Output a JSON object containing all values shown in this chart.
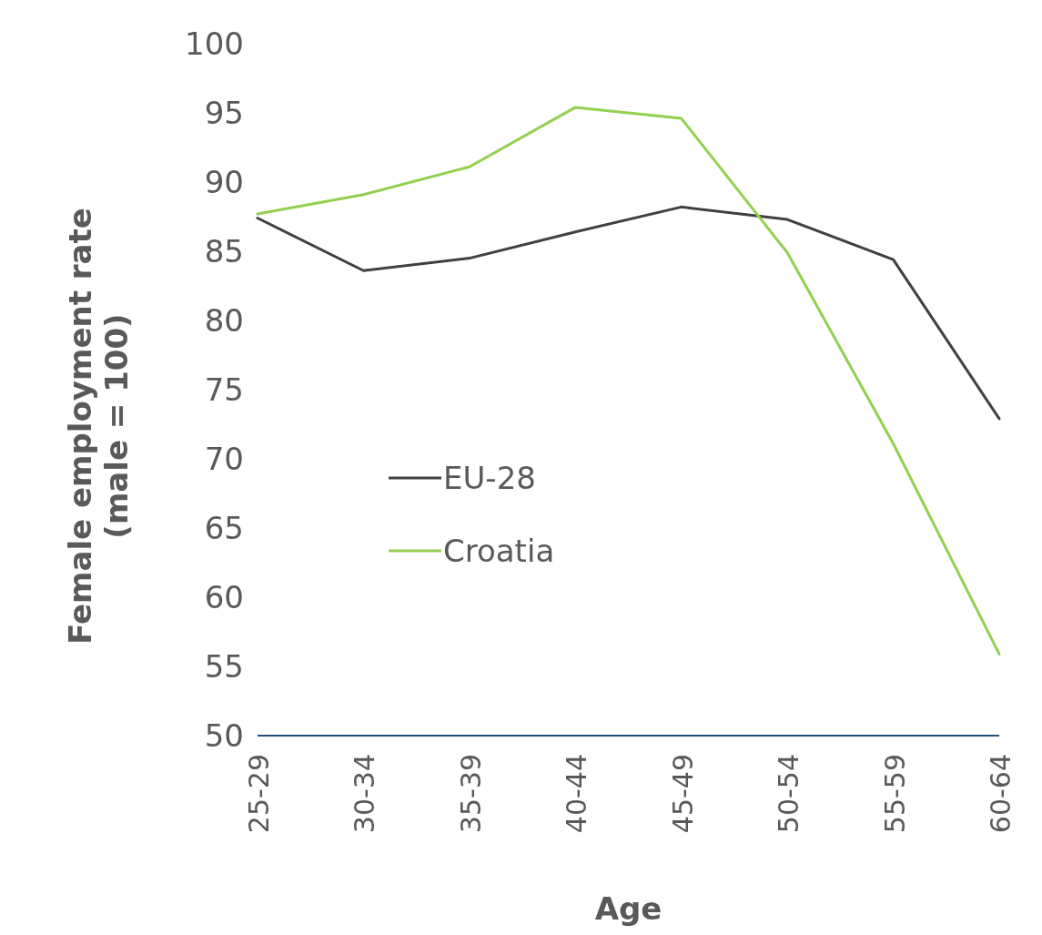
{
  "chart_data": {
    "type": "line",
    "xlabel": "Age",
    "ylabel": "Female employment rate (male = 100)",
    "categories": [
      "25-29",
      "30-34",
      "35-39",
      "40-44",
      "45-49",
      "50-54",
      "55-59",
      "60-64"
    ],
    "series": [
      {
        "name": "EU-28",
        "color": "#404040",
        "values": [
          87.4,
          83.6,
          84.5,
          86.4,
          88.2,
          87.3,
          84.4,
          72.9
        ]
      },
      {
        "name": "Croatia",
        "color": "#92d050",
        "values": [
          87.7,
          89.1,
          91.1,
          95.4,
          94.6,
          84.9,
          71.1,
          55.9
        ]
      }
    ],
    "ylim": [
      50,
      100
    ],
    "yticks": [
      50,
      55,
      60,
      65,
      70,
      75,
      80,
      85,
      90,
      95,
      100
    ],
    "grid": false,
    "legend": "left",
    "marker": "none",
    "line_style": "solid"
  }
}
